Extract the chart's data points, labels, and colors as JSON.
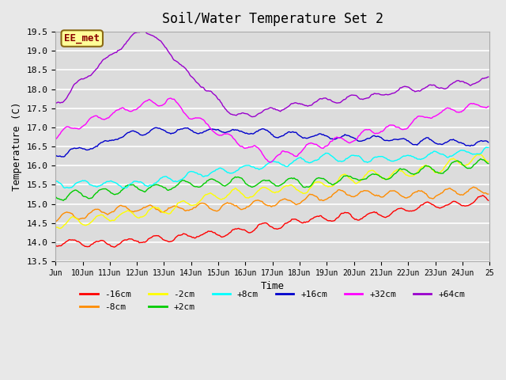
{
  "title": "Soil/Water Temperature Set 2",
  "xlabel": "Time",
  "ylabel": "Temperature (C)",
  "ylim": [
    13.5,
    19.5
  ],
  "background_color": "#e8e8e8",
  "plot_bg_color": "#dcdcdc",
  "annotation_text": "EE_met",
  "annotation_bg": "#ffff99",
  "annotation_border": "#8b6914",
  "tick_labels": [
    "Jun",
    "10Jun",
    "11Jun",
    "12Jun",
    "13Jun",
    "14Jun",
    "15Jun",
    "16Jun",
    "17Jun",
    "18Jun",
    "19Jun",
    "20Jun",
    "21Jun",
    "22Jun",
    "23Jun",
    "24Jun",
    "25"
  ],
  "series": {
    "-16cm": {
      "color": "#ff0000"
    },
    "-8cm": {
      "color": "#ff8c00"
    },
    "-2cm": {
      "color": "#ffff00"
    },
    "+2cm": {
      "color": "#00cc00"
    },
    "+8cm": {
      "color": "#00ffff"
    },
    "+16cm": {
      "color": "#0000cc"
    },
    "+32cm": {
      "color": "#ff00ff"
    },
    "+64cm": {
      "color": "#9900cc"
    }
  },
  "n_points": 384,
  "grid_color": "#ffffff",
  "font_family": "monospace"
}
